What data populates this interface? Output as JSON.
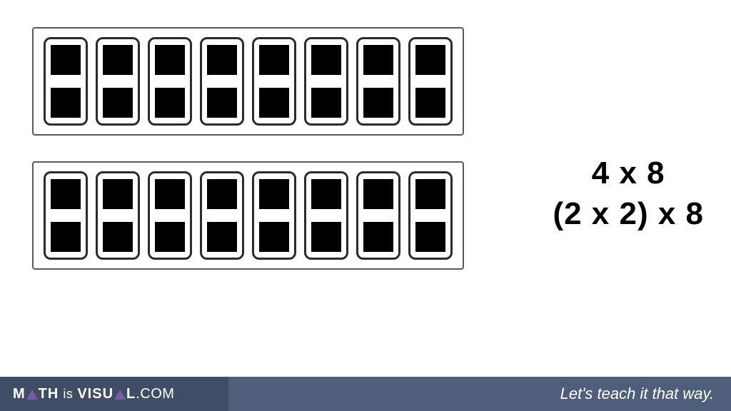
{
  "diagram": {
    "type": "infographic",
    "background_color": "#ffffff",
    "trays": {
      "count": 2,
      "border_color": "#5a5a5a",
      "background_color": "#ffffff",
      "dominoes_per_tray": 8,
      "domino": {
        "border_color": "#2b2b2b",
        "pips_per_domino": 2,
        "pip_color": "#000000"
      }
    }
  },
  "equations": {
    "line1": "4  x  8",
    "line2": "(2 x 2) x 8",
    "fontsize": 44,
    "color": "#000000"
  },
  "footer": {
    "left_bg": "#3f4d66",
    "right_bg": "#4f5e7a",
    "triangle_color": "#7a5ca3",
    "brand_math": "M",
    "brand_math2": "TH",
    "brand_is": "is",
    "brand_vis1": "VISU",
    "brand_vis2": "L",
    "brand_com": ".COM",
    "tagline": "Let's teach it that way."
  }
}
